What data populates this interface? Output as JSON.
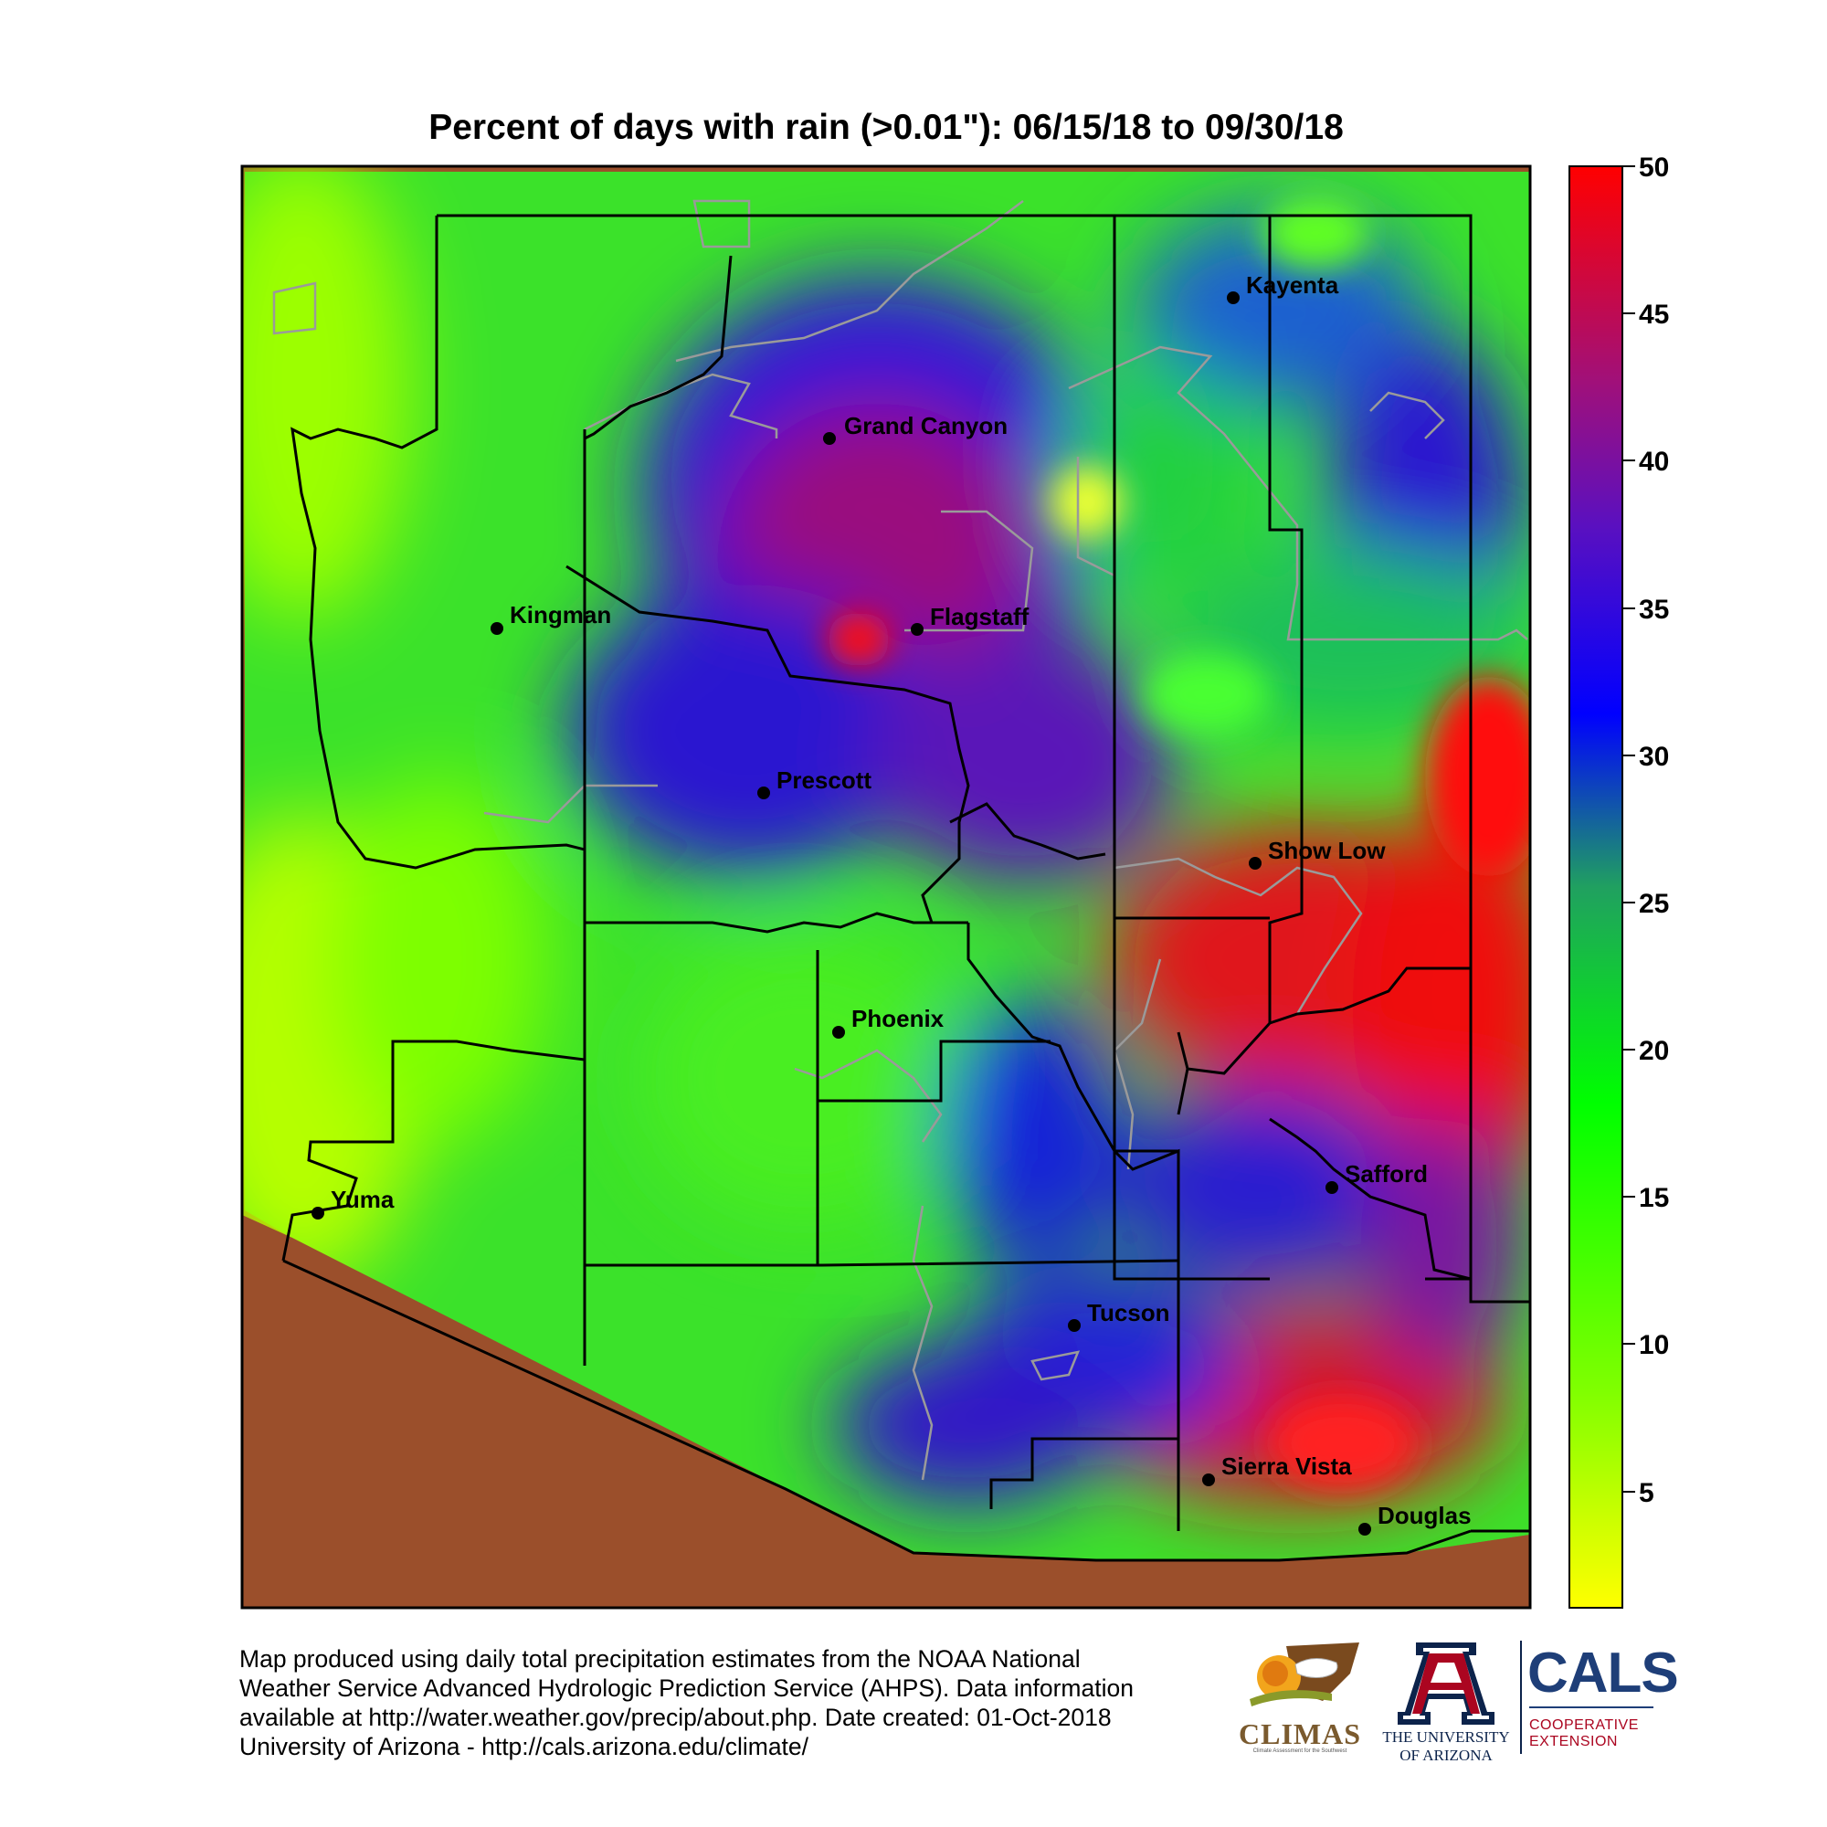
{
  "title": "Percent of days with rain (>0.01\"): 06/15/18 to 09/30/18",
  "legend": {
    "ticks": [
      "50",
      "45",
      "40",
      "35",
      "30",
      "25",
      "20",
      "15",
      "10",
      "5"
    ],
    "colors": [
      "#ffff00",
      "#00ff00",
      "#0000ff",
      "#8b0a8b",
      "#ff0000"
    ]
  },
  "cities": {
    "kayenta": "Kayenta",
    "grand_canyon": "Grand Canyon",
    "kingman": "Kingman",
    "flagstaff": "Flagstaff",
    "prescott": "Prescott",
    "show_low": "Show Low",
    "phoenix": "Phoenix",
    "safford": "Safford",
    "yuma": "Yuma",
    "tucson": "Tucson",
    "sierra_vista": "Sierra Vista",
    "douglas": "Douglas"
  },
  "footer": {
    "line1": "Map produced using daily total precipitation estimates from the NOAA National",
    "line2": "Weather Service Advanced Hydrologic Prediction Service (AHPS). Data information",
    "line3": "available at http://water.weather.gov/precip/about.php. Date created: 01-Oct-2018",
    "line4": "University of Arizona - http://cals.arizona.edu/climate/"
  },
  "logos": {
    "climas": "CLIMAS",
    "climas_sub": "Climate Assessment for the Southwest",
    "ua_mark": "A",
    "ua_line1": "THE UNIVERSITY",
    "ua_line2": "OF ARIZONA",
    "cals": "CALS",
    "cals_line1": "COOPERATIVE",
    "cals_line2": "EXTENSION"
  },
  "colors": {
    "outside_border": "#9b4f2b",
    "county_lines": "#000000",
    "reservation_lines": "#9a9a9a",
    "ua_blue": "#0c234b",
    "ua_red": "#ab0520"
  }
}
